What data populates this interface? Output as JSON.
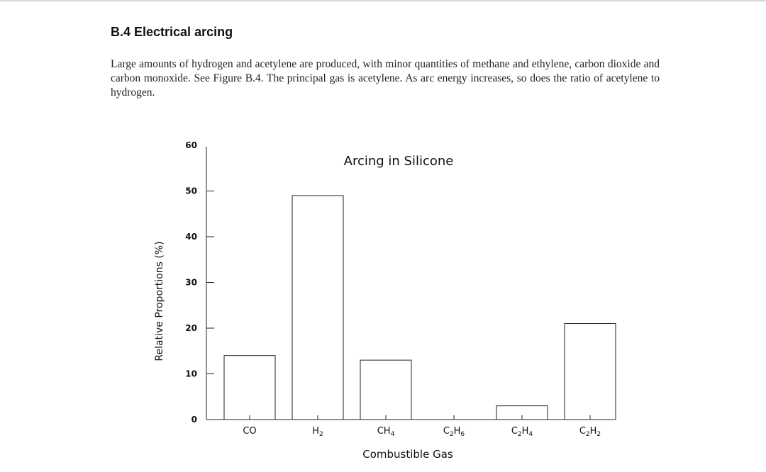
{
  "section": {
    "heading": "B.4 Electrical arcing",
    "paragraph": "Large amounts of hydrogen and acetylene are produced, with minor quantities of methane and ethylene, carbon dioxide and carbon monoxide. See Figure B.4. The principal gas is acetylene. As arc energy increases, so does the ratio of acetylene to hydrogen."
  },
  "chart_data": {
    "type": "bar",
    "title": "Arcing in Silicone",
    "xlabel": "Combustible Gas",
    "ylabel": "Relative Proportions (%)",
    "categories": [
      {
        "base": "CO",
        "parts": []
      },
      {
        "base": "H",
        "parts": [
          {
            "t": "H",
            "s": ""
          },
          {
            "t": "2",
            "s": "sub"
          }
        ]
      },
      {
        "base": "CH",
        "parts": [
          {
            "t": "CH",
            "s": ""
          },
          {
            "t": "4",
            "s": "sub"
          }
        ]
      },
      {
        "base": "C2H6",
        "parts": [
          {
            "t": "C",
            "s": ""
          },
          {
            "t": "2",
            "s": "sub"
          },
          {
            "t": "H",
            "s": ""
          },
          {
            "t": "6",
            "s": "sub"
          }
        ]
      },
      {
        "base": "C2H4",
        "parts": [
          {
            "t": "C",
            "s": ""
          },
          {
            "t": "2",
            "s": "sub"
          },
          {
            "t": "H",
            "s": ""
          },
          {
            "t": "4",
            "s": "sub"
          }
        ]
      },
      {
        "base": "C2H2",
        "parts": [
          {
            "t": "C",
            "s": ""
          },
          {
            "t": "2",
            "s": "sub"
          },
          {
            "t": "H",
            "s": ""
          },
          {
            "t": "2",
            "s": "sub"
          }
        ]
      }
    ],
    "category_labels": [
      "CO",
      "H2",
      "CH4",
      "C2H6",
      "C2H4",
      "C2H2"
    ],
    "values": [
      14,
      49,
      13,
      0,
      3,
      21
    ],
    "ylim": [
      0,
      60
    ],
    "yticks": [
      "0",
      "10",
      "20",
      "30",
      "40",
      "50",
      "60"
    ],
    "grid": false,
    "legend": "none"
  }
}
